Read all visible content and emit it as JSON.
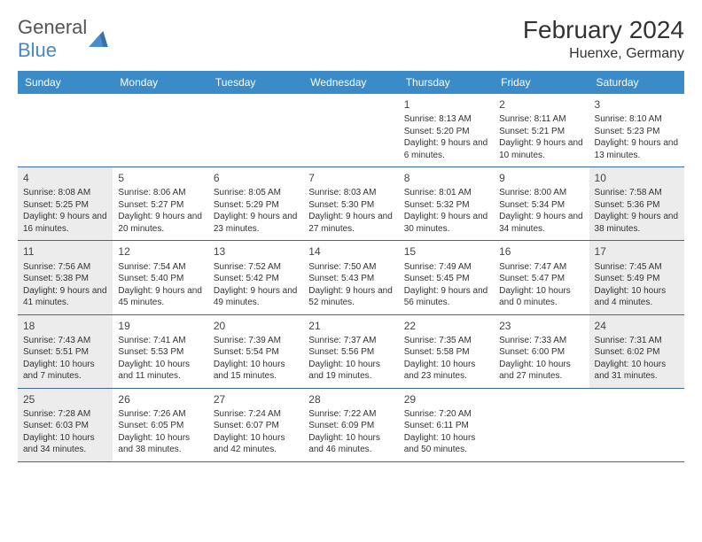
{
  "logo": {
    "text1": "General",
    "text2": "Blue"
  },
  "title": "February 2024",
  "location": "Huenxe, Germany",
  "colors": {
    "headerBg": "#3b8bc9",
    "headerText": "#ffffff",
    "rowBorder": "#3b6a9a",
    "shade": "#ececec",
    "logoBlue": "#4488cc"
  },
  "dayHeaders": [
    "Sunday",
    "Monday",
    "Tuesday",
    "Wednesday",
    "Thursday",
    "Friday",
    "Saturday"
  ],
  "weeks": [
    [
      {
        "num": "",
        "lines": [],
        "shade": false
      },
      {
        "num": "",
        "lines": [],
        "shade": false
      },
      {
        "num": "",
        "lines": [],
        "shade": false
      },
      {
        "num": "",
        "lines": [],
        "shade": false
      },
      {
        "num": "1",
        "lines": [
          "Sunrise: 8:13 AM",
          "Sunset: 5:20 PM",
          "Daylight: 9 hours and 6 minutes."
        ],
        "shade": false
      },
      {
        "num": "2",
        "lines": [
          "Sunrise: 8:11 AM",
          "Sunset: 5:21 PM",
          "Daylight: 9 hours and 10 minutes."
        ],
        "shade": false
      },
      {
        "num": "3",
        "lines": [
          "Sunrise: 8:10 AM",
          "Sunset: 5:23 PM",
          "Daylight: 9 hours and 13 minutes."
        ],
        "shade": false
      }
    ],
    [
      {
        "num": "4",
        "lines": [
          "Sunrise: 8:08 AM",
          "Sunset: 5:25 PM",
          "Daylight: 9 hours and 16 minutes."
        ],
        "shade": true
      },
      {
        "num": "5",
        "lines": [
          "Sunrise: 8:06 AM",
          "Sunset: 5:27 PM",
          "Daylight: 9 hours and 20 minutes."
        ],
        "shade": false
      },
      {
        "num": "6",
        "lines": [
          "Sunrise: 8:05 AM",
          "Sunset: 5:29 PM",
          "Daylight: 9 hours and 23 minutes."
        ],
        "shade": false
      },
      {
        "num": "7",
        "lines": [
          "Sunrise: 8:03 AM",
          "Sunset: 5:30 PM",
          "Daylight: 9 hours and 27 minutes."
        ],
        "shade": false
      },
      {
        "num": "8",
        "lines": [
          "Sunrise: 8:01 AM",
          "Sunset: 5:32 PM",
          "Daylight: 9 hours and 30 minutes."
        ],
        "shade": false
      },
      {
        "num": "9",
        "lines": [
          "Sunrise: 8:00 AM",
          "Sunset: 5:34 PM",
          "Daylight: 9 hours and 34 minutes."
        ],
        "shade": false
      },
      {
        "num": "10",
        "lines": [
          "Sunrise: 7:58 AM",
          "Sunset: 5:36 PM",
          "Daylight: 9 hours and 38 minutes."
        ],
        "shade": true
      }
    ],
    [
      {
        "num": "11",
        "lines": [
          "Sunrise: 7:56 AM",
          "Sunset: 5:38 PM",
          "Daylight: 9 hours and 41 minutes."
        ],
        "shade": true
      },
      {
        "num": "12",
        "lines": [
          "Sunrise: 7:54 AM",
          "Sunset: 5:40 PM",
          "Daylight: 9 hours and 45 minutes."
        ],
        "shade": false
      },
      {
        "num": "13",
        "lines": [
          "Sunrise: 7:52 AM",
          "Sunset: 5:42 PM",
          "Daylight: 9 hours and 49 minutes."
        ],
        "shade": false
      },
      {
        "num": "14",
        "lines": [
          "Sunrise: 7:50 AM",
          "Sunset: 5:43 PM",
          "Daylight: 9 hours and 52 minutes."
        ],
        "shade": false
      },
      {
        "num": "15",
        "lines": [
          "Sunrise: 7:49 AM",
          "Sunset: 5:45 PM",
          "Daylight: 9 hours and 56 minutes."
        ],
        "shade": false
      },
      {
        "num": "16",
        "lines": [
          "Sunrise: 7:47 AM",
          "Sunset: 5:47 PM",
          "Daylight: 10 hours and 0 minutes."
        ],
        "shade": false
      },
      {
        "num": "17",
        "lines": [
          "Sunrise: 7:45 AM",
          "Sunset: 5:49 PM",
          "Daylight: 10 hours and 4 minutes."
        ],
        "shade": true
      }
    ],
    [
      {
        "num": "18",
        "lines": [
          "Sunrise: 7:43 AM",
          "Sunset: 5:51 PM",
          "Daylight: 10 hours and 7 minutes."
        ],
        "shade": true
      },
      {
        "num": "19",
        "lines": [
          "Sunrise: 7:41 AM",
          "Sunset: 5:53 PM",
          "Daylight: 10 hours and 11 minutes."
        ],
        "shade": false
      },
      {
        "num": "20",
        "lines": [
          "Sunrise: 7:39 AM",
          "Sunset: 5:54 PM",
          "Daylight: 10 hours and 15 minutes."
        ],
        "shade": false
      },
      {
        "num": "21",
        "lines": [
          "Sunrise: 7:37 AM",
          "Sunset: 5:56 PM",
          "Daylight: 10 hours and 19 minutes."
        ],
        "shade": false
      },
      {
        "num": "22",
        "lines": [
          "Sunrise: 7:35 AM",
          "Sunset: 5:58 PM",
          "Daylight: 10 hours and 23 minutes."
        ],
        "shade": false
      },
      {
        "num": "23",
        "lines": [
          "Sunrise: 7:33 AM",
          "Sunset: 6:00 PM",
          "Daylight: 10 hours and 27 minutes."
        ],
        "shade": false
      },
      {
        "num": "24",
        "lines": [
          "Sunrise: 7:31 AM",
          "Sunset: 6:02 PM",
          "Daylight: 10 hours and 31 minutes."
        ],
        "shade": true
      }
    ],
    [
      {
        "num": "25",
        "lines": [
          "Sunrise: 7:28 AM",
          "Sunset: 6:03 PM",
          "Daylight: 10 hours and 34 minutes."
        ],
        "shade": true
      },
      {
        "num": "26",
        "lines": [
          "Sunrise: 7:26 AM",
          "Sunset: 6:05 PM",
          "Daylight: 10 hours and 38 minutes."
        ],
        "shade": false
      },
      {
        "num": "27",
        "lines": [
          "Sunrise: 7:24 AM",
          "Sunset: 6:07 PM",
          "Daylight: 10 hours and 42 minutes."
        ],
        "shade": false
      },
      {
        "num": "28",
        "lines": [
          "Sunrise: 7:22 AM",
          "Sunset: 6:09 PM",
          "Daylight: 10 hours and 46 minutes."
        ],
        "shade": false
      },
      {
        "num": "29",
        "lines": [
          "Sunrise: 7:20 AM",
          "Sunset: 6:11 PM",
          "Daylight: 10 hours and 50 minutes."
        ],
        "shade": false
      },
      {
        "num": "",
        "lines": [],
        "shade": false
      },
      {
        "num": "",
        "lines": [],
        "shade": false
      }
    ]
  ]
}
